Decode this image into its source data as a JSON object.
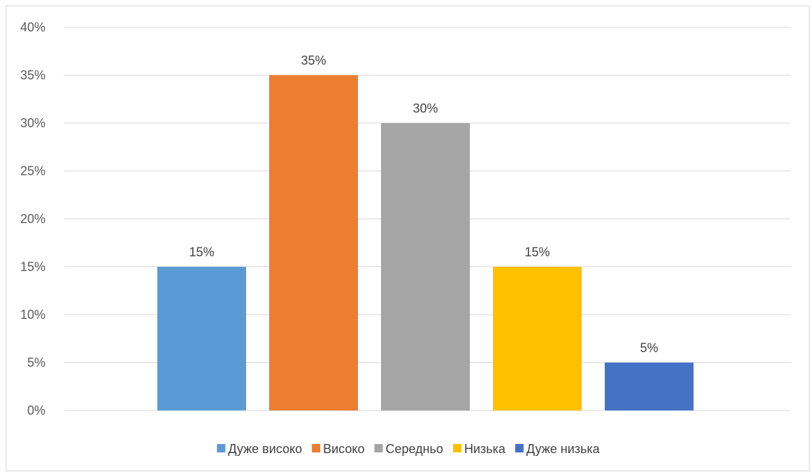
{
  "chart_data": {
    "type": "bar",
    "categories": [
      "Дуже високо",
      "Високо",
      "Середньо",
      "Низька",
      "Дуже низька"
    ],
    "values": [
      15,
      35,
      30,
      15,
      5
    ],
    "value_labels": [
      "15%",
      "35%",
      "30%",
      "15%",
      "5%"
    ],
    "colors": [
      "#5b9bd5",
      "#ed7d31",
      "#a5a5a5",
      "#ffc000",
      "#4472c4"
    ],
    "title": "",
    "xlabel": "",
    "ylabel": "",
    "ylim": [
      0,
      40
    ],
    "y_ticks": [
      0,
      5,
      10,
      15,
      20,
      25,
      30,
      35,
      40
    ],
    "y_tick_labels": [
      "0%",
      "5%",
      "10%",
      "15%",
      "20%",
      "25%",
      "30%",
      "35%",
      "40%"
    ],
    "grid": true,
    "legend_position": "bottom",
    "gridline_color": "#d9d9d9"
  }
}
